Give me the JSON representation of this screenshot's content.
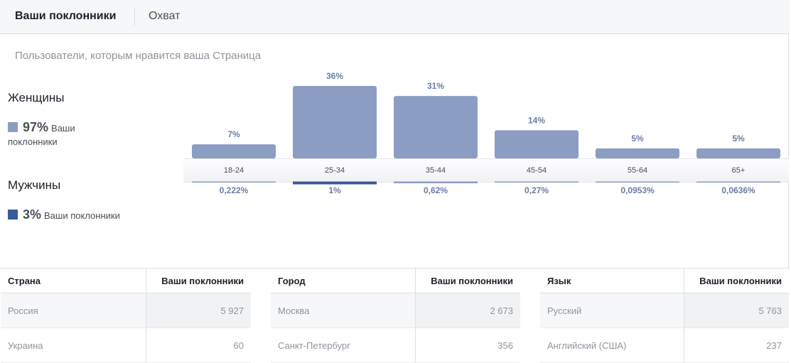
{
  "tabs": {
    "active": "Ваши поклонники",
    "other": "Охват"
  },
  "subtitle": "Пользователи, которым нравится ваша Страница",
  "women": {
    "label": "Женщины",
    "percent": "97%",
    "desc": "Ваши поклонники",
    "color": "#8b9dc3"
  },
  "men": {
    "label": "Мужчины",
    "percent": "3%",
    "desc": "Ваши поклонники",
    "color": "#3b5998"
  },
  "chart_data": {
    "type": "bar",
    "categories": [
      "18-24",
      "25-34",
      "35-44",
      "45-54",
      "55-64",
      "65+"
    ],
    "series": [
      {
        "name": "Женщины",
        "values": [
          7,
          36,
          31,
          14,
          5,
          5
        ],
        "labels": [
          "7%",
          "36%",
          "31%",
          "14%",
          "5%",
          "5%"
        ],
        "color": "#8b9dc3"
      },
      {
        "name": "Мужчины",
        "values": [
          0.222,
          1,
          0.62,
          0.27,
          0.0953,
          0.0636
        ],
        "labels": [
          "0,222%",
          "1%",
          "0,62%",
          "0,27%",
          "0,0953%",
          "0,0636%"
        ],
        "color": "#3b5998"
      }
    ],
    "ylim": [
      0,
      36
    ]
  },
  "tables": [
    {
      "header": "Страна",
      "count_header": "Ваши поклонники",
      "rows": [
        {
          "name": "Россия",
          "count": "5 927"
        },
        {
          "name": "Украина",
          "count": "60"
        }
      ]
    },
    {
      "header": "Город",
      "count_header": "Ваши поклонники",
      "rows": [
        {
          "name": "Москва",
          "count": "2 673"
        },
        {
          "name": "Санкт-Петербург",
          "count": "356"
        }
      ]
    },
    {
      "header": "Язык",
      "count_header": "Ваши поклонники",
      "rows": [
        {
          "name": "Русский",
          "count": "5 763"
        },
        {
          "name": "Английский (США)",
          "count": "237"
        }
      ]
    }
  ]
}
